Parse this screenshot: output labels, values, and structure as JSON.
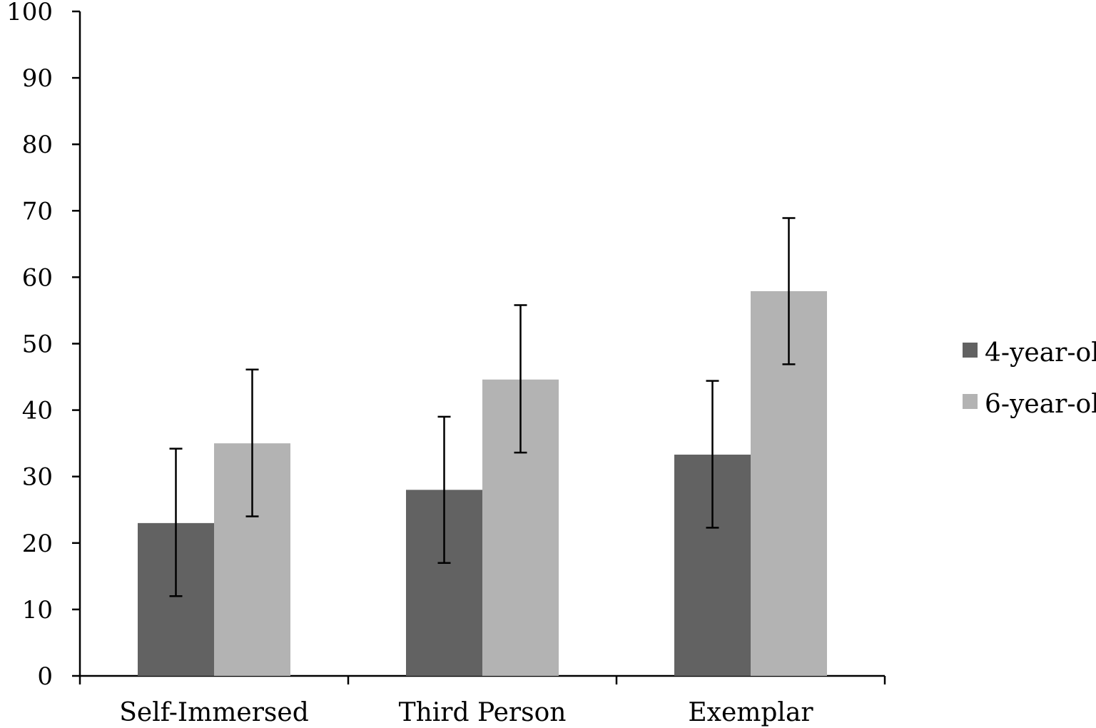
{
  "chart_data": {
    "type": "bar",
    "categories": [
      "Self-Immersed",
      "Third Person",
      "Exemplar"
    ],
    "series": [
      {
        "name": "4-year-ol",
        "color": "#626262",
        "values": [
          23,
          28,
          33.3
        ],
        "error_low": [
          12,
          17,
          22.3
        ],
        "error_high": [
          34.2,
          39,
          44.4
        ]
      },
      {
        "name": "6-year-ol",
        "color": "#b3b3b3",
        "values": [
          35,
          44.6,
          57.9
        ],
        "error_low": [
          24,
          33.6,
          46.9
        ],
        "error_high": [
          46.1,
          55.8,
          68.9
        ]
      }
    ],
    "yticks": [
      "0",
      "10",
      "20",
      "30",
      "40",
      "50",
      "60",
      "70",
      "80",
      "90",
      "100"
    ],
    "ylim": [
      0,
      100
    ],
    "grid": false,
    "legend_position": "right"
  }
}
